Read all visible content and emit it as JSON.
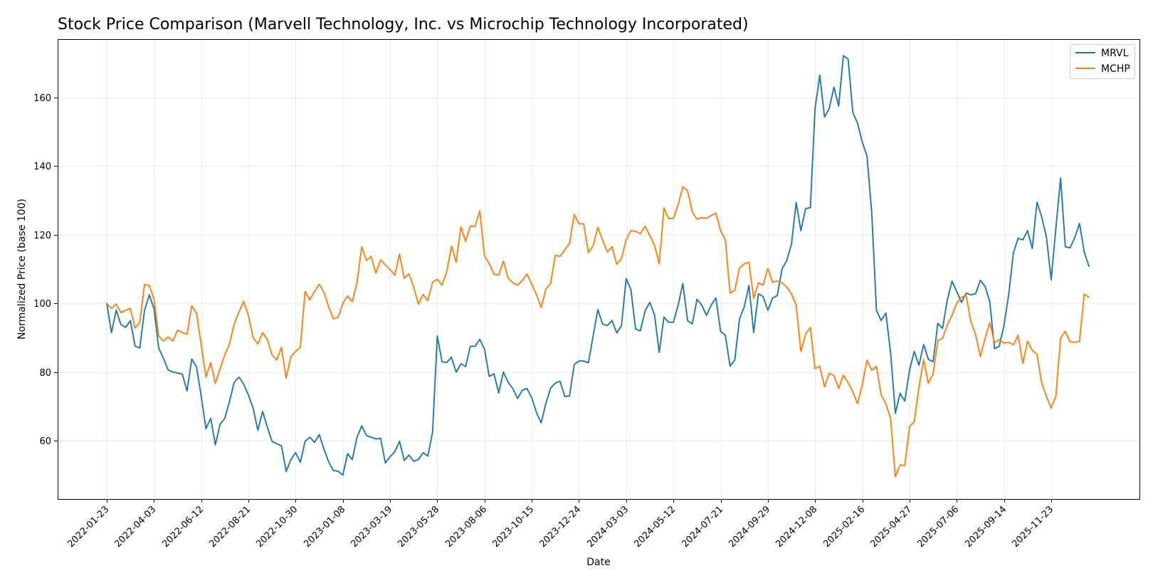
{
  "chart_data": {
    "type": "line",
    "title": "Stock Price Comparison (Marvell Technology, Inc. vs Microchip Technology Incorporated)",
    "xlabel": "Date",
    "ylabel": "Normalized Price (base 100)",
    "ylim": [
      43,
      177
    ],
    "yticks": [
      60,
      80,
      100,
      120,
      140,
      160
    ],
    "xtick_labels": [
      "2022-01-23",
      "2022-04-03",
      "2022-06-12",
      "2022-08-21",
      "2022-10-30",
      "2023-01-08",
      "2023-03-19",
      "2023-05-28",
      "2023-08-06",
      "2023-10-15",
      "2023-12-24",
      "2024-03-03",
      "2024-05-12",
      "2024-07-21",
      "2024-09-29",
      "2024-12-08",
      "2025-02-16",
      "2025-04-27",
      "2025-07-06",
      "2025-09-14",
      "2025-11-23"
    ],
    "grid": true,
    "legend_position": "top-right",
    "series": [
      {
        "name": "MRVL",
        "color": "#1f77b4",
        "values": [
          100,
          91.5,
          98,
          93.8,
          93,
          95,
          87.5,
          87,
          98,
          102.5,
          98.5,
          87,
          84,
          80.6,
          80,
          79.7,
          79.4,
          74.5,
          83.8,
          81.5,
          73,
          63.5,
          66.5,
          58.8,
          64.8,
          66.5,
          71.5,
          77,
          78.5,
          76.5,
          73.3,
          69.5,
          63,
          68.5,
          64,
          59.8,
          59.1,
          58.5,
          51,
          54.5,
          56.5,
          53.7,
          59.8,
          61,
          59.5,
          61.8,
          57.5,
          53.8,
          51.3,
          51.1,
          50,
          56.2,
          54.5,
          61,
          64.3,
          61.5,
          61,
          60.5,
          60.7,
          53.5,
          55.3,
          56.8,
          59.8,
          54.2,
          55.8,
          54,
          54.5,
          56.5,
          55.5,
          62.5,
          90.5,
          83,
          82.8,
          84.3,
          79.9,
          82.4,
          81.6,
          87.5,
          87.5,
          89.5,
          86.7,
          78.7,
          79.5,
          73.9,
          80,
          77,
          75.2,
          72.3,
          74.7,
          75.2,
          72.5,
          68.2,
          65.2,
          70.9,
          75.3,
          76.8,
          77.3,
          72.9,
          73,
          82.2,
          83.2,
          83.2,
          82.7,
          90.5,
          98.2,
          94,
          93.5,
          95,
          91.4,
          93.5,
          107.2,
          104,
          92.5,
          92,
          97.8,
          100.3,
          96.7,
          85.7,
          96,
          94.5,
          94.5,
          99.5,
          105.8,
          95,
          94,
          101.2,
          99.5,
          96.5,
          99.5,
          101.6,
          91.8,
          90.7,
          81.7,
          83.5,
          95.5,
          99,
          105.2,
          91.5,
          102.8,
          102,
          98,
          101.5,
          102.3,
          110,
          112.5,
          117.2,
          129.4,
          121.2,
          127.6,
          127.9,
          156.8,
          166.5,
          154.3,
          156.8,
          163,
          157.5,
          172.2,
          171.2,
          155.6,
          152.5,
          147,
          143,
          126.5,
          98,
          95,
          97.2,
          85.5,
          68,
          73.8,
          71.5,
          80.5,
          86,
          82,
          88,
          83.7,
          83,
          94.2,
          92.7,
          101,
          106.5,
          103.5,
          100.3,
          103,
          102.5,
          102.8,
          106.7,
          105,
          100.5,
          86.8,
          87.5,
          93.5,
          102.5,
          114.7,
          119,
          118.5,
          121.2,
          116,
          129.5,
          125.2,
          119.3,
          106.9,
          122,
          136.5,
          116.5,
          116.2,
          119.2,
          123.3,
          115,
          110.8
        ]
      },
      {
        "name": "MCHP",
        "color": "#ff7f0e",
        "values": [
          100,
          98.5,
          99.8,
          97.3,
          98,
          98.5,
          92.8,
          94.5,
          105.5,
          105.3,
          101.3,
          90.5,
          89,
          90.2,
          89,
          92.2,
          91.5,
          91,
          99.3,
          97.2,
          88,
          78.5,
          82.8,
          76.7,
          81,
          85,
          88.2,
          94,
          97.5,
          100.6,
          96.5,
          90,
          88.2,
          91.5,
          89.5,
          85,
          83.5,
          87.2,
          78.2,
          84.5,
          86,
          87.2,
          103.5,
          101,
          103.5,
          105.6,
          103.3,
          99,
          95.5,
          96,
          100,
          102.2,
          100.5,
          106,
          116.5,
          112.5,
          113.7,
          108.8,
          112.7,
          111.2,
          109.9,
          108.2,
          114.4,
          107.3,
          108.6,
          104.8,
          99.8,
          102.6,
          100.8,
          106.2,
          107,
          105.3,
          109.2,
          116.7,
          112,
          122.3,
          118.1,
          122.5,
          122.5,
          127,
          113.8,
          111.6,
          108.5,
          108.3,
          112.3,
          107.4,
          106,
          105.3,
          106.7,
          108.5,
          105.6,
          102.6,
          98.8,
          104.2,
          105.8,
          114,
          113.7,
          115.6,
          117.5,
          125.9,
          123.2,
          123.2,
          114.8,
          116.8,
          122.2,
          118.5,
          115,
          116.5,
          111.4,
          113,
          118.5,
          121.2,
          121,
          120.3,
          122.5,
          119.8,
          117,
          111.5,
          127.8,
          124.7,
          124.8,
          128.7,
          134,
          132.8,
          126.7,
          124.5,
          125,
          124.8,
          125.6,
          126.3,
          121.2,
          118.5,
          103,
          103.8,
          110.3,
          111.5,
          112,
          101.5,
          106,
          105.3,
          110.2,
          106.2,
          106.5,
          106,
          104.8,
          102.8,
          99.5,
          86,
          91,
          93,
          81,
          81.7,
          75.7,
          79.6,
          79,
          75.2,
          79.1,
          76.9,
          74.2,
          70.8,
          76.2,
          83.5,
          80.5,
          81.6,
          73.4,
          70.7,
          66.5,
          49.5,
          52.9,
          52.8,
          64,
          65.5,
          75.5,
          83.6,
          76.7,
          79.5,
          89.2,
          89.8,
          93.7,
          96.5,
          100,
          101.8,
          102.3,
          94.7,
          91,
          84.5,
          89.8,
          94.4,
          88.5,
          89.5,
          88.4,
          88.7,
          87.9,
          90.7,
          82.5,
          89,
          86.3,
          85.2,
          76.8,
          72.9,
          69.5,
          73,
          89.9,
          91.8,
          88.8,
          88.7,
          88.9,
          102.7,
          101.8
        ]
      }
    ]
  }
}
